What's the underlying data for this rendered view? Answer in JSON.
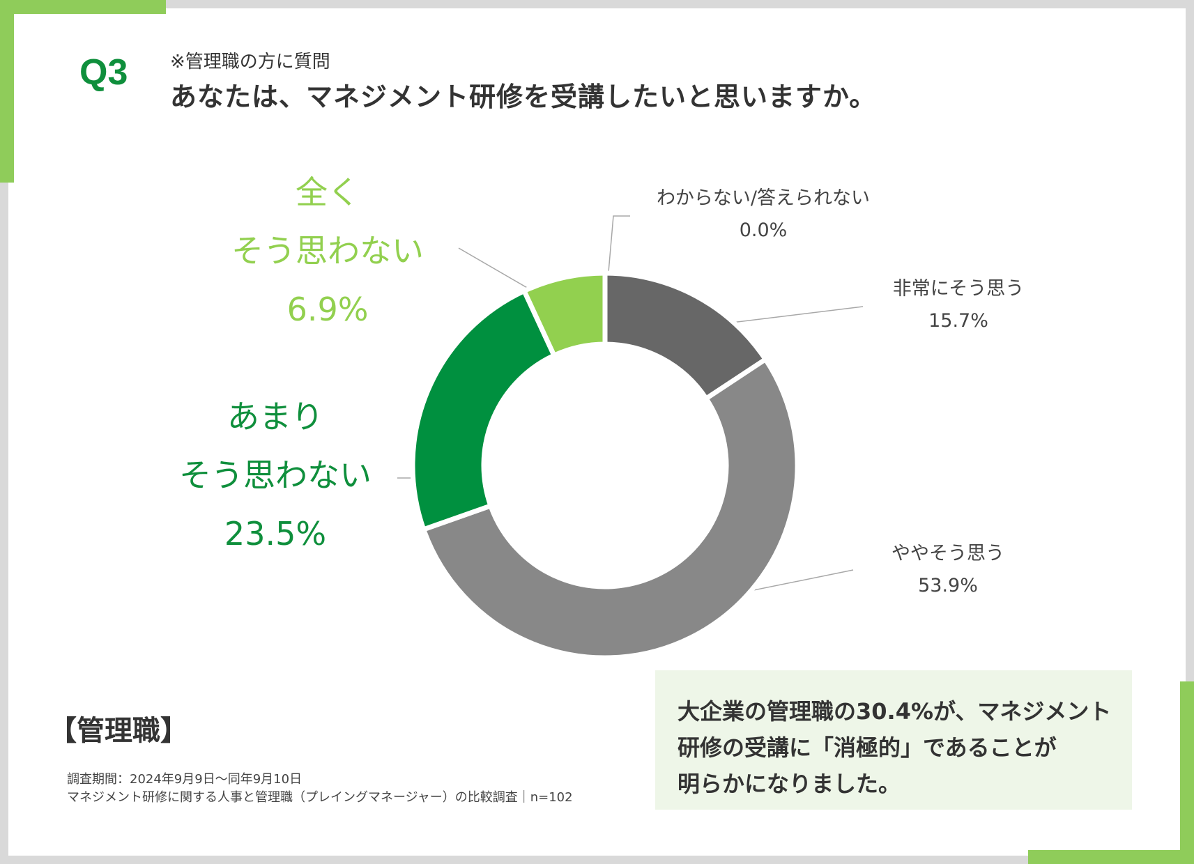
{
  "header": {
    "q_number": "Q3",
    "note": "※管理職の方に質問",
    "title": "あなたは、マネジメント研修を受講したいと思いますか。"
  },
  "chart_data": {
    "type": "pie",
    "donut": true,
    "slices": [
      {
        "label": "非常にそう思う",
        "value": 15.7,
        "value_text": "15.7%",
        "color": "#676767"
      },
      {
        "label": "ややそう思う",
        "value": 53.9,
        "value_text": "53.9%",
        "color": "#888888"
      },
      {
        "label_lines": [
          "あまり",
          "そう思わない"
        ],
        "value": 23.5,
        "value_text": "23.5%",
        "color": "#00903f"
      },
      {
        "label_lines": [
          "全く",
          "そう思わない"
        ],
        "value": 6.9,
        "value_text": "6.9%",
        "color": "#92d04f"
      },
      {
        "label": "わからない/答えられない",
        "value": 0.0,
        "value_text": "0.0%",
        "color": "#cccccc"
      }
    ]
  },
  "footer": {
    "group_label": "【管理職】",
    "source_line1": "調査期間：2024年9月9日〜同年9月10日",
    "source_line2": "マネジメント研修に関する人事と管理職（プレイングマネージャー）の比較調査｜n=102"
  },
  "summary": {
    "line1": "大企業の管理職の30.4%が、マネジメント",
    "line2": "研修の受講に「消極的」であることが",
    "line3": "明らかになりました。"
  }
}
